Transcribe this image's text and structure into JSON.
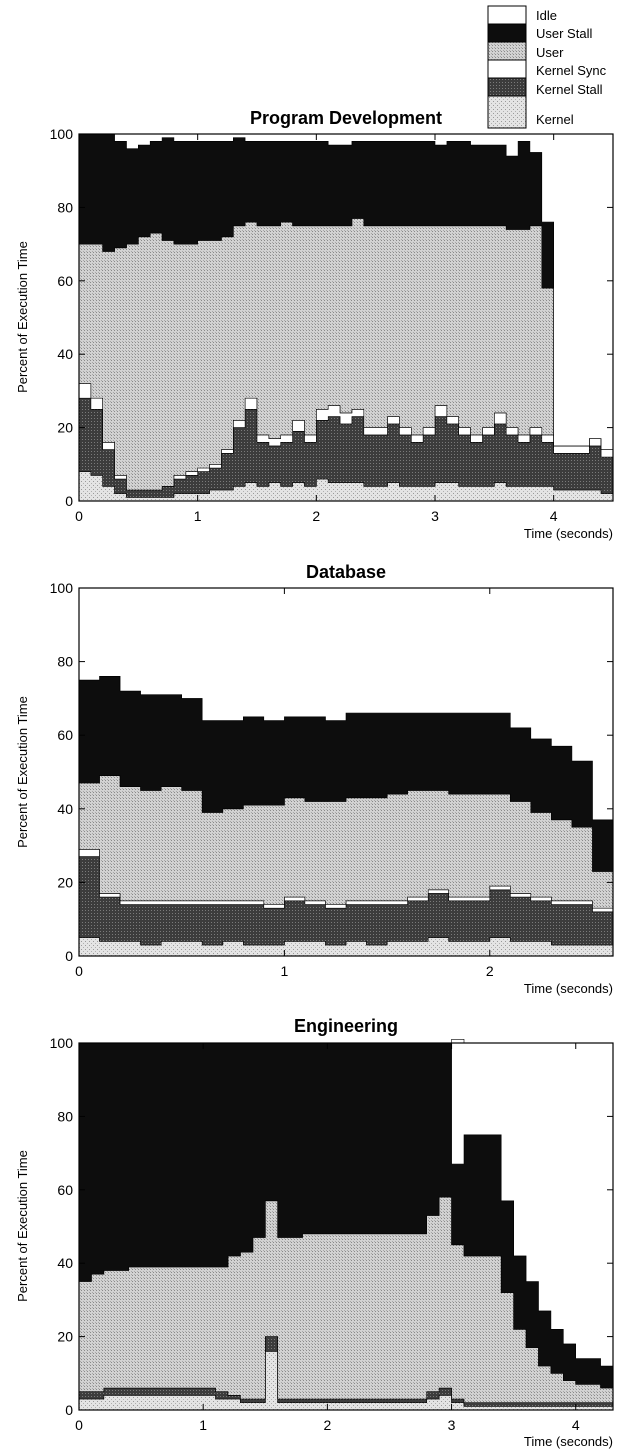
{
  "legend": {
    "placement": "top-right",
    "items": [
      {
        "label": "Idle",
        "color": "#ffffff"
      },
      {
        "label": "User Stall",
        "color": "#0d0d0d"
      },
      {
        "label": "User",
        "color": "#c8c8c8"
      },
      {
        "label": "Kernel Sync",
        "color": "#ffffff"
      },
      {
        "label": "Kernel Stall",
        "color": "#474747"
      },
      {
        "label": "Kernel",
        "color": "#dadada"
      }
    ]
  },
  "chart_data": [
    {
      "type": "area",
      "stacked": true,
      "title": "Program Development",
      "xlabel": "Time (seconds)",
      "ylabel": "Percent of Execution Time",
      "xlim": [
        0,
        4.5
      ],
      "ylim": [
        0,
        100
      ],
      "xticks": [
        0,
        1,
        2,
        3,
        4
      ],
      "yticks": [
        0,
        20,
        40,
        60,
        80,
        100
      ],
      "x": [
        0.0,
        0.1,
        0.2,
        0.3,
        0.4,
        0.5,
        0.6,
        0.7,
        0.8,
        0.9,
        1.0,
        1.1,
        1.2,
        1.3,
        1.4,
        1.5,
        1.6,
        1.7,
        1.8,
        1.9,
        2.0,
        2.1,
        2.2,
        2.3,
        2.4,
        2.5,
        2.6,
        2.7,
        2.8,
        2.9,
        3.0,
        3.1,
        3.2,
        3.3,
        3.4,
        3.5,
        3.6,
        3.7,
        3.8,
        3.9,
        4.0,
        4.1,
        4.2,
        4.3,
        4.4,
        4.5
      ],
      "series": [
        {
          "name": "Kernel",
          "values": [
            8,
            7,
            4,
            2,
            1,
            1,
            1,
            1,
            2,
            2,
            2,
            3,
            3,
            4,
            5,
            4,
            5,
            4,
            5,
            4,
            6,
            5,
            5,
            5,
            4,
            4,
            5,
            4,
            4,
            4,
            5,
            5,
            4,
            4,
            4,
            5,
            4,
            4,
            4,
            4,
            3,
            3,
            3,
            3,
            2,
            1
          ]
        },
        {
          "name": "Kernel Stall",
          "values": [
            20,
            18,
            10,
            4,
            2,
            2,
            2,
            3,
            4,
            5,
            6,
            6,
            10,
            16,
            20,
            12,
            10,
            12,
            14,
            12,
            16,
            18,
            16,
            18,
            14,
            14,
            16,
            14,
            12,
            14,
            18,
            16,
            14,
            12,
            14,
            16,
            14,
            12,
            14,
            12,
            10,
            10,
            10,
            12,
            10,
            1
          ]
        },
        {
          "name": "Kernel Sync",
          "values": [
            4,
            3,
            2,
            1,
            0,
            0,
            0,
            0,
            1,
            1,
            1,
            1,
            1,
            2,
            3,
            2,
            2,
            2,
            3,
            2,
            3,
            3,
            3,
            2,
            2,
            2,
            2,
            2,
            2,
            2,
            3,
            2,
            2,
            2,
            2,
            3,
            2,
            2,
            2,
            2,
            2,
            2,
            2,
            2,
            2,
            0
          ]
        },
        {
          "name": "User",
          "values": [
            38,
            42,
            52,
            62,
            67,
            69,
            70,
            67,
            63,
            62,
            62,
            61,
            58,
            53,
            48,
            57,
            58,
            58,
            53,
            57,
            50,
            49,
            51,
            52,
            55,
            55,
            52,
            55,
            57,
            55,
            49,
            52,
            55,
            57,
            55,
            51,
            54,
            56,
            55,
            40,
            0,
            0,
            0,
            0,
            0,
            0
          ]
        },
        {
          "name": "User Stall",
          "values": [
            30,
            30,
            32,
            29,
            26,
            25,
            25,
            28,
            28,
            28,
            27,
            27,
            26,
            24,
            22,
            23,
            23,
            22,
            23,
            23,
            23,
            22,
            22,
            21,
            23,
            23,
            23,
            23,
            23,
            23,
            22,
            23,
            23,
            22,
            22,
            22,
            20,
            24,
            20,
            18,
            0,
            0,
            0,
            0,
            0,
            0
          ]
        },
        {
          "name": "Idle",
          "values": [
            0,
            0,
            0,
            2,
            4,
            3,
            2,
            1,
            2,
            2,
            2,
            2,
            2,
            1,
            2,
            2,
            2,
            2,
            2,
            2,
            2,
            3,
            3,
            2,
            2,
            2,
            2,
            2,
            2,
            2,
            3,
            2,
            2,
            3,
            3,
            3,
            6,
            2,
            5,
            24,
            85,
            85,
            85,
            83,
            86,
            98
          ]
        }
      ]
    },
    {
      "type": "area",
      "stacked": true,
      "title": "Database",
      "xlabel": "Time (seconds)",
      "ylabel": "Percent of Execution Time",
      "xlim": [
        0,
        2.6
      ],
      "ylim": [
        0,
        100
      ],
      "xticks": [
        0,
        1,
        2
      ],
      "yticks": [
        0,
        20,
        40,
        60,
        80,
        100
      ],
      "x": [
        0.0,
        0.1,
        0.2,
        0.3,
        0.4,
        0.5,
        0.6,
        0.7,
        0.8,
        0.9,
        1.0,
        1.1,
        1.2,
        1.3,
        1.4,
        1.5,
        1.6,
        1.7,
        1.8,
        1.9,
        2.0,
        2.1,
        2.2,
        2.3,
        2.4,
        2.5,
        2.6
      ],
      "series": [
        {
          "name": "Kernel",
          "values": [
            5,
            4,
            4,
            3,
            4,
            4,
            3,
            4,
            3,
            3,
            4,
            4,
            3,
            4,
            3,
            4,
            4,
            5,
            4,
            4,
            5,
            4,
            4,
            3,
            3,
            3,
            2
          ]
        },
        {
          "name": "Kernel Stall",
          "values": [
            22,
            12,
            10,
            11,
            10,
            10,
            11,
            10,
            11,
            10,
            11,
            10,
            10,
            10,
            11,
            10,
            11,
            12,
            11,
            11,
            13,
            12,
            11,
            11,
            11,
            9,
            6
          ]
        },
        {
          "name": "Kernel Sync",
          "values": [
            2,
            1,
            1,
            1,
            1,
            1,
            1,
            1,
            1,
            1,
            1,
            1,
            1,
            1,
            1,
            1,
            1,
            1,
            1,
            1,
            1,
            1,
            1,
            1,
            1,
            1,
            0
          ]
        },
        {
          "name": "User",
          "values": [
            18,
            32,
            31,
            30,
            31,
            30,
            24,
            25,
            26,
            27,
            27,
            27,
            28,
            28,
            28,
            29,
            29,
            27,
            28,
            28,
            25,
            25,
            23,
            22,
            20,
            10,
            2
          ]
        },
        {
          "name": "User Stall",
          "values": [
            28,
            27,
            26,
            26,
            25,
            25,
            25,
            24,
            24,
            23,
            22,
            23,
            22,
            23,
            23,
            22,
            21,
            21,
            22,
            22,
            22,
            20,
            20,
            20,
            18,
            14,
            12
          ]
        },
        {
          "name": "Idle",
          "values": [
            25,
            24,
            28,
            29,
            29,
            30,
            36,
            36,
            35,
            36,
            35,
            35,
            36,
            34,
            34,
            34,
            34,
            34,
            34,
            34,
            34,
            38,
            41,
            43,
            47,
            63,
            78
          ]
        }
      ]
    },
    {
      "type": "area",
      "stacked": true,
      "title": "Engineering",
      "xlabel": "Time (seconds)",
      "ylabel": "Percent of Execution Time",
      "xlim": [
        0,
        4.3
      ],
      "ylim": [
        0,
        100
      ],
      "xticks": [
        0,
        1,
        2,
        3,
        4
      ],
      "yticks": [
        0,
        20,
        40,
        60,
        80,
        100
      ],
      "x": [
        0.0,
        0.1,
        0.2,
        0.3,
        0.4,
        0.5,
        0.6,
        0.7,
        0.8,
        0.9,
        1.0,
        1.1,
        1.2,
        1.3,
        1.4,
        1.5,
        1.6,
        1.7,
        1.8,
        1.9,
        2.0,
        2.1,
        2.2,
        2.3,
        2.4,
        2.5,
        2.6,
        2.7,
        2.8,
        2.9,
        3.0,
        3.1,
        3.2,
        3.3,
        3.4,
        3.5,
        3.6,
        3.7,
        3.8,
        3.9,
        4.0,
        4.1,
        4.2,
        4.3
      ],
      "series": [
        {
          "name": "Kernel",
          "values": [
            3,
            3,
            4,
            4,
            4,
            4,
            4,
            4,
            4,
            4,
            4,
            3,
            3,
            2,
            2,
            16,
            2,
            2,
            2,
            2,
            2,
            2,
            2,
            2,
            2,
            2,
            2,
            2,
            3,
            4,
            2,
            1,
            1,
            1,
            1,
            1,
            1,
            1,
            1,
            1,
            1,
            1,
            1,
            1
          ]
        },
        {
          "name": "Kernel Stall",
          "values": [
            2,
            2,
            2,
            2,
            2,
            2,
            2,
            2,
            2,
            2,
            2,
            2,
            1,
            1,
            1,
            4,
            1,
            1,
            1,
            1,
            1,
            1,
            1,
            1,
            1,
            1,
            1,
            1,
            2,
            2,
            1,
            1,
            1,
            1,
            1,
            1,
            1,
            1,
            1,
            1,
            1,
            1,
            1,
            1
          ]
        },
        {
          "name": "Kernel Sync",
          "values": [
            0,
            0,
            0,
            0,
            0,
            0,
            0,
            0,
            0,
            0,
            0,
            0,
            0,
            0,
            0,
            0,
            0,
            0,
            0,
            0,
            0,
            0,
            0,
            0,
            0,
            0,
            0,
            0,
            0,
            0,
            0,
            0,
            0,
            0,
            0,
            0,
            0,
            0,
            0,
            0,
            0,
            0,
            0,
            0
          ]
        },
        {
          "name": "User",
          "values": [
            30,
            32,
            32,
            32,
            33,
            33,
            33,
            33,
            33,
            33,
            33,
            34,
            38,
            40,
            44,
            37,
            44,
            44,
            45,
            45,
            45,
            45,
            45,
            45,
            45,
            45,
            45,
            45,
            48,
            52,
            42,
            40,
            40,
            40,
            30,
            20,
            15,
            10,
            8,
            6,
            5,
            5,
            4,
            4
          ]
        },
        {
          "name": "User Stall",
          "values": [
            65,
            63,
            62,
            62,
            61,
            61,
            61,
            61,
            61,
            61,
            61,
            61,
            58,
            57,
            53,
            43,
            53,
            53,
            52,
            52,
            52,
            52,
            52,
            52,
            52,
            52,
            52,
            52,
            47,
            42,
            22,
            33,
            33,
            33,
            25,
            20,
            18,
            15,
            12,
            10,
            7,
            7,
            6,
            6
          ]
        },
        {
          "name": "Idle",
          "values": [
            0,
            0,
            0,
            0,
            0,
            0,
            0,
            0,
            0,
            0,
            0,
            0,
            0,
            0,
            0,
            0,
            0,
            0,
            0,
            0,
            0,
            0,
            0,
            0,
            0,
            0,
            0,
            0,
            0,
            0,
            34,
            25,
            25,
            25,
            43,
            58,
            65,
            73,
            78,
            82,
            86,
            86,
            88,
            88
          ]
        }
      ]
    }
  ]
}
